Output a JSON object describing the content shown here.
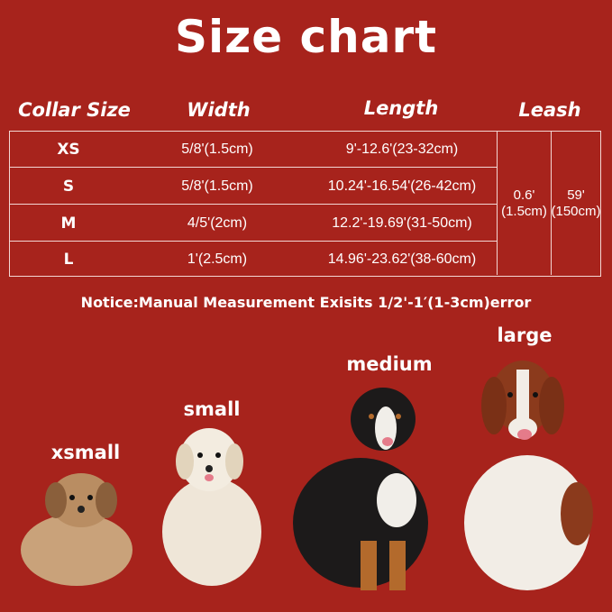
{
  "title": "Size chart",
  "headers": {
    "size": "Collar Size",
    "width": "Width",
    "length": "Length",
    "leash": "Leash"
  },
  "rows": [
    {
      "size": "XS",
      "width": "5/8'(1.5cm)",
      "length": "9'-12.6'(23-32cm)"
    },
    {
      "size": "S",
      "width": "5/8'(1.5cm)",
      "length": "10.24'-16.54'(26-42cm)"
    },
    {
      "size": "M",
      "width": "4/5'(2cm)",
      "length": "12.2'-19.69'(31-50cm)"
    },
    {
      "size": "L",
      "width": "1'(2.5cm)",
      "length": "14.96'-23.62'(38-60cm)"
    }
  ],
  "leash": {
    "width_in": "0.6'",
    "width_cm": "(1.5cm)",
    "length_in": "59'",
    "length_cm": "(150cm)"
  },
  "notice": "Notice:Manual Measurement Exisits 1/2'-1′(1-3cm)error",
  "dogs": [
    {
      "label": "xsmall",
      "fur": "#c9a27a"
    },
    {
      "label": "small",
      "fur": "#efe6d8"
    },
    {
      "label": "medium",
      "fur": "#1c1a1a"
    },
    {
      "label": "large",
      "fur": "#f2ede6"
    }
  ],
  "colors": {
    "background": "#a7231c",
    "text": "#ffffff"
  }
}
